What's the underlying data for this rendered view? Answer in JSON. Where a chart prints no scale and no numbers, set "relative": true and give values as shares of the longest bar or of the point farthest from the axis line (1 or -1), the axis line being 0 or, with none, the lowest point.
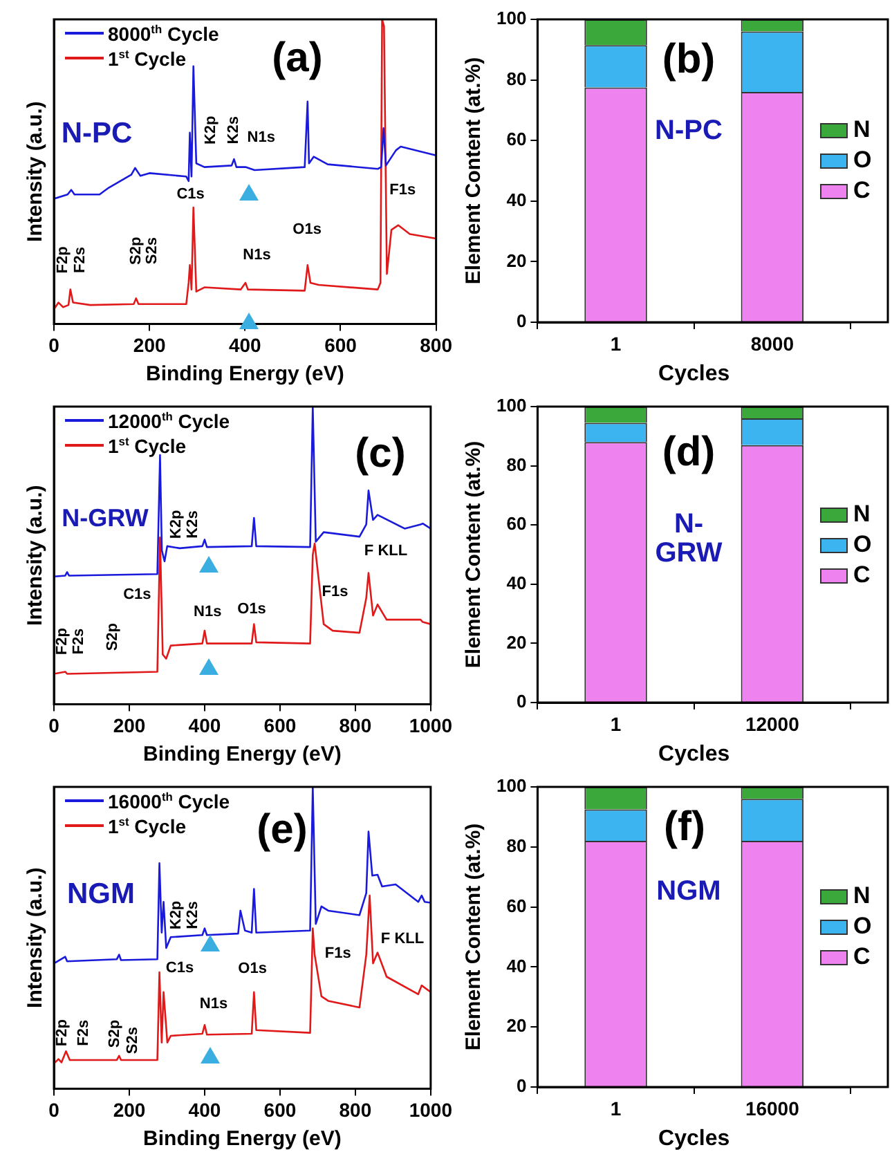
{
  "chart_data": [
    {
      "type": "line",
      "relative": true,
      "xlabel": "Binding Energy (eV)",
      "ylabel": "Intensity (a.u.)",
      "xlim": [
        0,
        800
      ],
      "xticks": [
        0,
        200,
        400,
        600,
        800
      ],
      "legend": "top left",
      "marker": "none",
      "series": [
        {
          "name": "8000$^{th}$ Cycle",
          "color": "#1a1adc",
          "x": [
            0,
            28.6,
            36.3,
            43,
            95.5,
            114.6,
            162,
            170,
            181,
            200,
            277,
            282,
            284.5,
            288,
            292,
            298,
            315,
            372,
            377,
            382,
            401,
            420,
            525,
            531,
            534,
            544,
            573,
            678,
            685,
            690,
            695,
            716,
            726,
            800
          ],
          "values": [
            0.411,
            0.425,
            0.44,
            0.425,
            0.425,
            0.447,
            0.49,
            0.512,
            0.486,
            0.495,
            0.484,
            0.469,
            0.628,
            0.484,
            0.846,
            0.527,
            0.515,
            0.52,
            0.541,
            0.515,
            0.515,
            0.505,
            0.515,
            0.73,
            0.527,
            0.549,
            0.524,
            0.509,
            0.515,
            0.643,
            0.52,
            0.57,
            0.582,
            0.553
          ]
        },
        {
          "name": "1$^{st}$ Cycle",
          "color": "#e01a1a",
          "x": [
            0,
            9.5,
            19,
            30.5,
            34.4,
            40,
            76,
            167,
            172,
            177,
            277,
            282,
            284.5,
            288,
            292,
            298,
            315,
            391,
            401,
            406,
            525,
            531,
            537,
            554,
            678,
            683.6,
            687,
            691,
            697,
            706.5,
            721,
            745,
            800
          ],
          "values": [
            0.048,
            0.07,
            0.055,
            0.062,
            0.113,
            0.07,
            0.062,
            0.065,
            0.084,
            0.065,
            0.065,
            0.135,
            0.193,
            0.113,
            0.382,
            0.106,
            0.12,
            0.113,
            0.135,
            0.113,
            0.109,
            0.193,
            0.135,
            0.128,
            0.113,
            0.135,
            1.0,
            0.977,
            0.164,
            0.309,
            0.324,
            0.295,
            0.28
          ]
        }
      ],
      "annotations": [
        "(a)",
        "N-PC",
        "C1s",
        "K2p",
        "K2s",
        "N1s",
        "F1s",
        "F2p",
        "F2s",
        "S2p",
        "S2s",
        "N1s",
        "O1s"
      ]
    },
    {
      "type": "bar",
      "stacked": true,
      "categories": [
        "1",
        "8000"
      ],
      "xlabel": "Cycles",
      "ylabel": "Element Content (at.%)",
      "ylim": [
        0,
        100
      ],
      "yticks": [
        0,
        20,
        40,
        60,
        80,
        100
      ],
      "legend": "right",
      "series": [
        {
          "name": "C",
          "color": "#ee82ee",
          "values": [
            77.5,
            76
          ]
        },
        {
          "name": "O",
          "color": "#3cb4f0",
          "values": [
            14,
            20
          ]
        },
        {
          "name": "N",
          "color": "#3aa83a",
          "values": [
            8.5,
            4
          ]
        }
      ],
      "annotations": [
        "(b)",
        "N-PC"
      ]
    },
    {
      "type": "line",
      "relative": true,
      "xlabel": "Binding Energy (eV)",
      "ylabel": "Intensity (a.u.)",
      "xlim": [
        0,
        1000
      ],
      "xticks": [
        0,
        200,
        400,
        600,
        800,
        1000
      ],
      "legend": "top left",
      "marker": "none",
      "series": [
        {
          "name": "12000$^{th}$ Cycle",
          "color": "#1a1adc",
          "x": [
            0,
            30,
            35,
            40,
            274.5,
            281.6,
            286.4,
            293.6,
            300.7,
            334,
            394,
            400,
            406,
            525,
            531,
            537,
            680,
            687,
            695,
            716,
            811,
            829,
            835,
            847,
            859,
            931,
            973,
            979,
            1000
          ],
          "values": [
            0.429,
            0.432,
            0.444,
            0.432,
            0.437,
            0.837,
            0.517,
            0.48,
            0.531,
            0.524,
            0.531,
            0.553,
            0.528,
            0.531,
            0.626,
            0.531,
            0.528,
            1.0,
            0.546,
            0.578,
            0.563,
            0.604,
            0.718,
            0.619,
            0.636,
            0.59,
            0.604,
            0.607,
            0.59
          ]
        },
        {
          "name": "1$^{st}$ Cycle",
          "color": "#e01a1a",
          "x": [
            0,
            30,
            35,
            274.5,
            281.6,
            288.8,
            298,
            310,
            394,
            400,
            406,
            525,
            531,
            537,
            680,
            687,
            692,
            716,
            740,
            811,
            829,
            835,
            847,
            859,
            883,
            973,
            979,
            1000
          ],
          "values": [
            0.102,
            0.109,
            0.102,
            0.109,
            0.56,
            0.167,
            0.153,
            0.197,
            0.204,
            0.247,
            0.204,
            0.204,
            0.269,
            0.208,
            0.204,
            0.502,
            0.54,
            0.269,
            0.247,
            0.24,
            0.357,
            0.441,
            0.298,
            0.335,
            0.284,
            0.284,
            0.276,
            0.269
          ]
        }
      ],
      "annotations": [
        "(c)",
        "N-GRW",
        "K2p",
        "K2s",
        "F KLL",
        "C1s",
        "F1s",
        "N1s",
        "O1s",
        "F2p",
        "F2s",
        "S2p"
      ]
    },
    {
      "type": "bar",
      "stacked": true,
      "categories": [
        "1",
        "12000"
      ],
      "xlabel": "Cycles",
      "ylabel": "Element Content (at.%)",
      "ylim": [
        0,
        100
      ],
      "yticks": [
        0,
        20,
        40,
        60,
        80,
        100
      ],
      "legend": "right",
      "series": [
        {
          "name": "C",
          "color": "#ee82ee",
          "values": [
            88,
            87
          ]
        },
        {
          "name": "O",
          "color": "#3cb4f0",
          "values": [
            6.5,
            9
          ]
        },
        {
          "name": "N",
          "color": "#3aa83a",
          "values": [
            5.5,
            4
          ]
        }
      ],
      "annotations": [
        "(d)",
        "N-GRW"
      ]
    },
    {
      "type": "line",
      "relative": true,
      "xlabel": "Binding Energy (eV)",
      "ylabel": "Intensity (a.u.)",
      "xlim": [
        0,
        1000
      ],
      "xticks": [
        0,
        200,
        400,
        600,
        800,
        1000
      ],
      "legend": "top left",
      "marker": "none",
      "series": [
        {
          "name": "16000$^{th}$ Cycle",
          "color": "#1a1adc",
          "x": [
            0,
            30,
            35,
            167,
            173,
            178,
            274.5,
            280,
            286,
            291,
            298,
            310,
            394,
            400,
            406,
            489,
            495,
            507,
            525,
            531,
            537,
            680,
            687,
            695,
            710,
            728,
            811,
            829,
            835,
            845,
            859,
            871,
            907,
            967,
            976,
            984,
            1000
          ],
          "values": [
            0.415,
            0.437,
            0.422,
            0.429,
            0.444,
            0.426,
            0.429,
            0.747,
            0.517,
            0.619,
            0.466,
            0.502,
            0.509,
            0.531,
            0.509,
            0.514,
            0.59,
            0.524,
            0.517,
            0.662,
            0.517,
            0.524,
            1.0,
            0.546,
            0.604,
            0.59,
            0.575,
            0.648,
            0.852,
            0.706,
            0.709,
            0.67,
            0.677,
            0.619,
            0.64,
            0.619,
            0.616
          ]
        },
        {
          "name": "1$^{st}$ Cycle",
          "color": "#e01a1a",
          "x": [
            0,
            12,
            20,
            32,
            42,
            167,
            173,
            178,
            274.5,
            280,
            286,
            291,
            301,
            310,
            394,
            400,
            406,
            525,
            531,
            537,
            680,
            687,
            692,
            710,
            728,
            811,
            829,
            838,
            847,
            859,
            883,
            967,
            976,
            1000
          ],
          "values": [
            0.083,
            0.098,
            0.087,
            0.124,
            0.095,
            0.095,
            0.109,
            0.095,
            0.095,
            0.386,
            0.153,
            0.32,
            0.153,
            0.175,
            0.182,
            0.211,
            0.179,
            0.182,
            0.32,
            0.194,
            0.185,
            0.531,
            0.444,
            0.306,
            0.291,
            0.269,
            0.444,
            0.64,
            0.415,
            0.451,
            0.371,
            0.313,
            0.342,
            0.32
          ]
        }
      ],
      "annotations": [
        "(e)",
        "NGM",
        "K2p",
        "K2s",
        "C1s",
        "O1s",
        "F1s",
        "F KLL",
        "N1s",
        "F2p",
        "F2s",
        "S2p",
        "S2s"
      ]
    },
    {
      "type": "bar",
      "stacked": true,
      "categories": [
        "1",
        "16000"
      ],
      "xlabel": "Cycles",
      "ylabel": "Element Content (at.%)",
      "ylim": [
        0,
        100
      ],
      "yticks": [
        0,
        20,
        40,
        60,
        80,
        100
      ],
      "legend": "right",
      "series": [
        {
          "name": "C",
          "color": "#ee82ee",
          "values": [
            82,
            82
          ]
        },
        {
          "name": "O",
          "color": "#3cb4f0",
          "values": [
            10.5,
            14
          ]
        },
        {
          "name": "N",
          "color": "#3aa83a",
          "values": [
            7.5,
            4
          ]
        }
      ],
      "annotations": [
        "(f)",
        "NGM"
      ]
    }
  ]
}
